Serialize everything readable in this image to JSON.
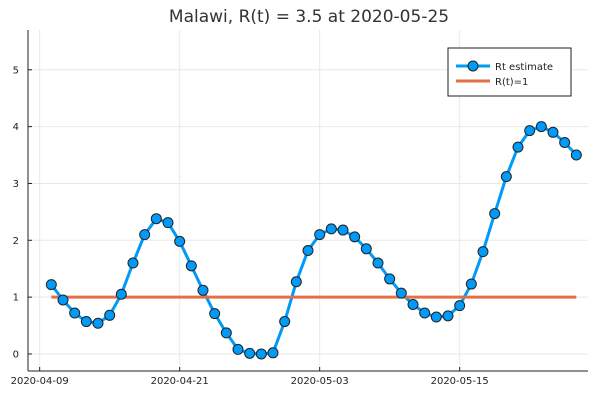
{
  "chart_data": {
    "type": "line",
    "title": "Malawi, R(t) = 3.5 at 2020-05-25",
    "xlabel": "",
    "ylabel": "",
    "x_start_date": "2020-04-09",
    "x_ticks": [
      "2020-04-09",
      "2020-04-21",
      "2020-05-03",
      "2020-05-15"
    ],
    "y_ticks": [
      0,
      1,
      2,
      3,
      4,
      5
    ],
    "xlim": [
      "2020-04-08",
      "2020-05-26"
    ],
    "ylim": [
      -0.3,
      5.7
    ],
    "grid": true,
    "legend_position": "top-right",
    "series": [
      {
        "name": "Rt estimate",
        "color": "#009af9",
        "marker": "circle",
        "x": [
          "2020-04-10",
          "2020-04-11",
          "2020-04-12",
          "2020-04-13",
          "2020-04-14",
          "2020-04-15",
          "2020-04-16",
          "2020-04-17",
          "2020-04-18",
          "2020-04-19",
          "2020-04-20",
          "2020-04-21",
          "2020-04-22",
          "2020-04-23",
          "2020-04-24",
          "2020-04-25",
          "2020-04-26",
          "2020-04-27",
          "2020-04-28",
          "2020-04-29",
          "2020-04-30",
          "2020-05-01",
          "2020-05-02",
          "2020-05-03",
          "2020-05-04",
          "2020-05-05",
          "2020-05-06",
          "2020-05-07",
          "2020-05-08",
          "2020-05-09",
          "2020-05-10",
          "2020-05-11",
          "2020-05-12",
          "2020-05-13",
          "2020-05-14",
          "2020-05-15",
          "2020-05-16",
          "2020-05-17",
          "2020-05-18",
          "2020-05-19",
          "2020-05-20",
          "2020-05-21",
          "2020-05-22",
          "2020-05-23",
          "2020-05-24",
          "2020-05-25"
        ],
        "values": [
          1.22,
          0.95,
          0.72,
          0.57,
          0.54,
          0.68,
          1.05,
          1.6,
          2.1,
          2.38,
          2.31,
          1.98,
          1.55,
          1.12,
          0.71,
          0.37,
          0.08,
          0.01,
          0.0,
          0.02,
          0.57,
          1.27,
          1.82,
          2.1,
          2.2,
          2.18,
          2.06,
          1.85,
          1.6,
          1.32,
          1.07,
          0.87,
          0.72,
          0.65,
          0.67,
          0.85,
          1.23,
          1.8,
          2.47,
          3.12,
          3.64,
          3.93,
          4.0,
          3.9,
          3.72,
          3.5
        ]
      },
      {
        "name": "R(t)=1",
        "color": "#e26f46",
        "marker": "none",
        "x": [
          "2020-04-10",
          "2020-05-25"
        ],
        "values": [
          1,
          1
        ]
      }
    ]
  }
}
